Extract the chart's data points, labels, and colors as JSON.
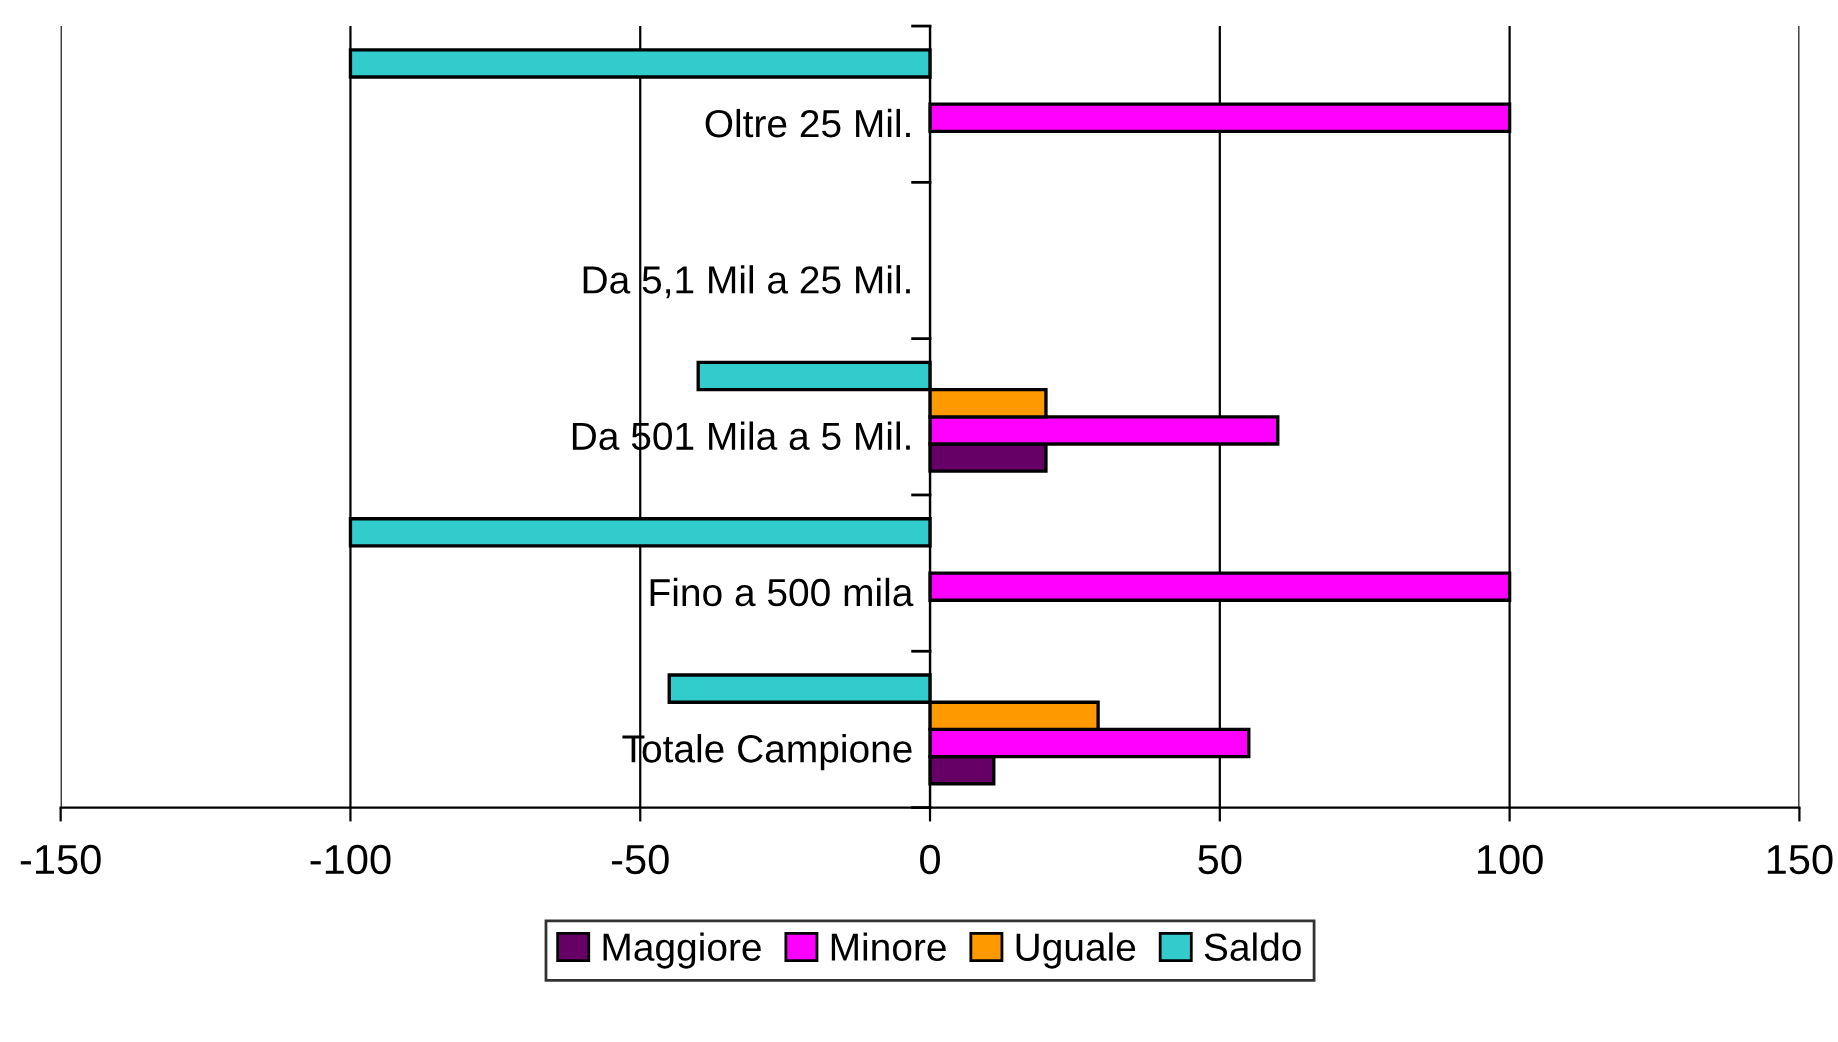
{
  "chart_data": {
    "type": "bar",
    "orientation": "horizontal",
    "categories": [
      "Oltre 25 Mil.",
      "Da 5,1 Mil a 25 Mil.",
      "Da 501 Mila a 5 Mil.",
      "Fino a 500 mila",
      "Totale Campione"
    ],
    "series": [
      {
        "name": "Maggiore",
        "color": "#660066",
        "values": [
          null,
          null,
          20,
          null,
          11
        ]
      },
      {
        "name": "Minore",
        "color": "#ff00ff",
        "values": [
          100,
          null,
          60,
          100,
          55
        ]
      },
      {
        "name": "Uguale",
        "color": "#ff9900",
        "values": [
          null,
          null,
          20,
          null,
          29
        ]
      },
      {
        "name": "Saldo",
        "color": "#33cccc",
        "values": [
          -100,
          null,
          -40,
          -100,
          -45
        ]
      }
    ],
    "xlim": [
      -150,
      150
    ],
    "xticks": [
      -150,
      -100,
      -50,
      0,
      50,
      100,
      150
    ],
    "grid": "x",
    "legend": "bottom"
  }
}
